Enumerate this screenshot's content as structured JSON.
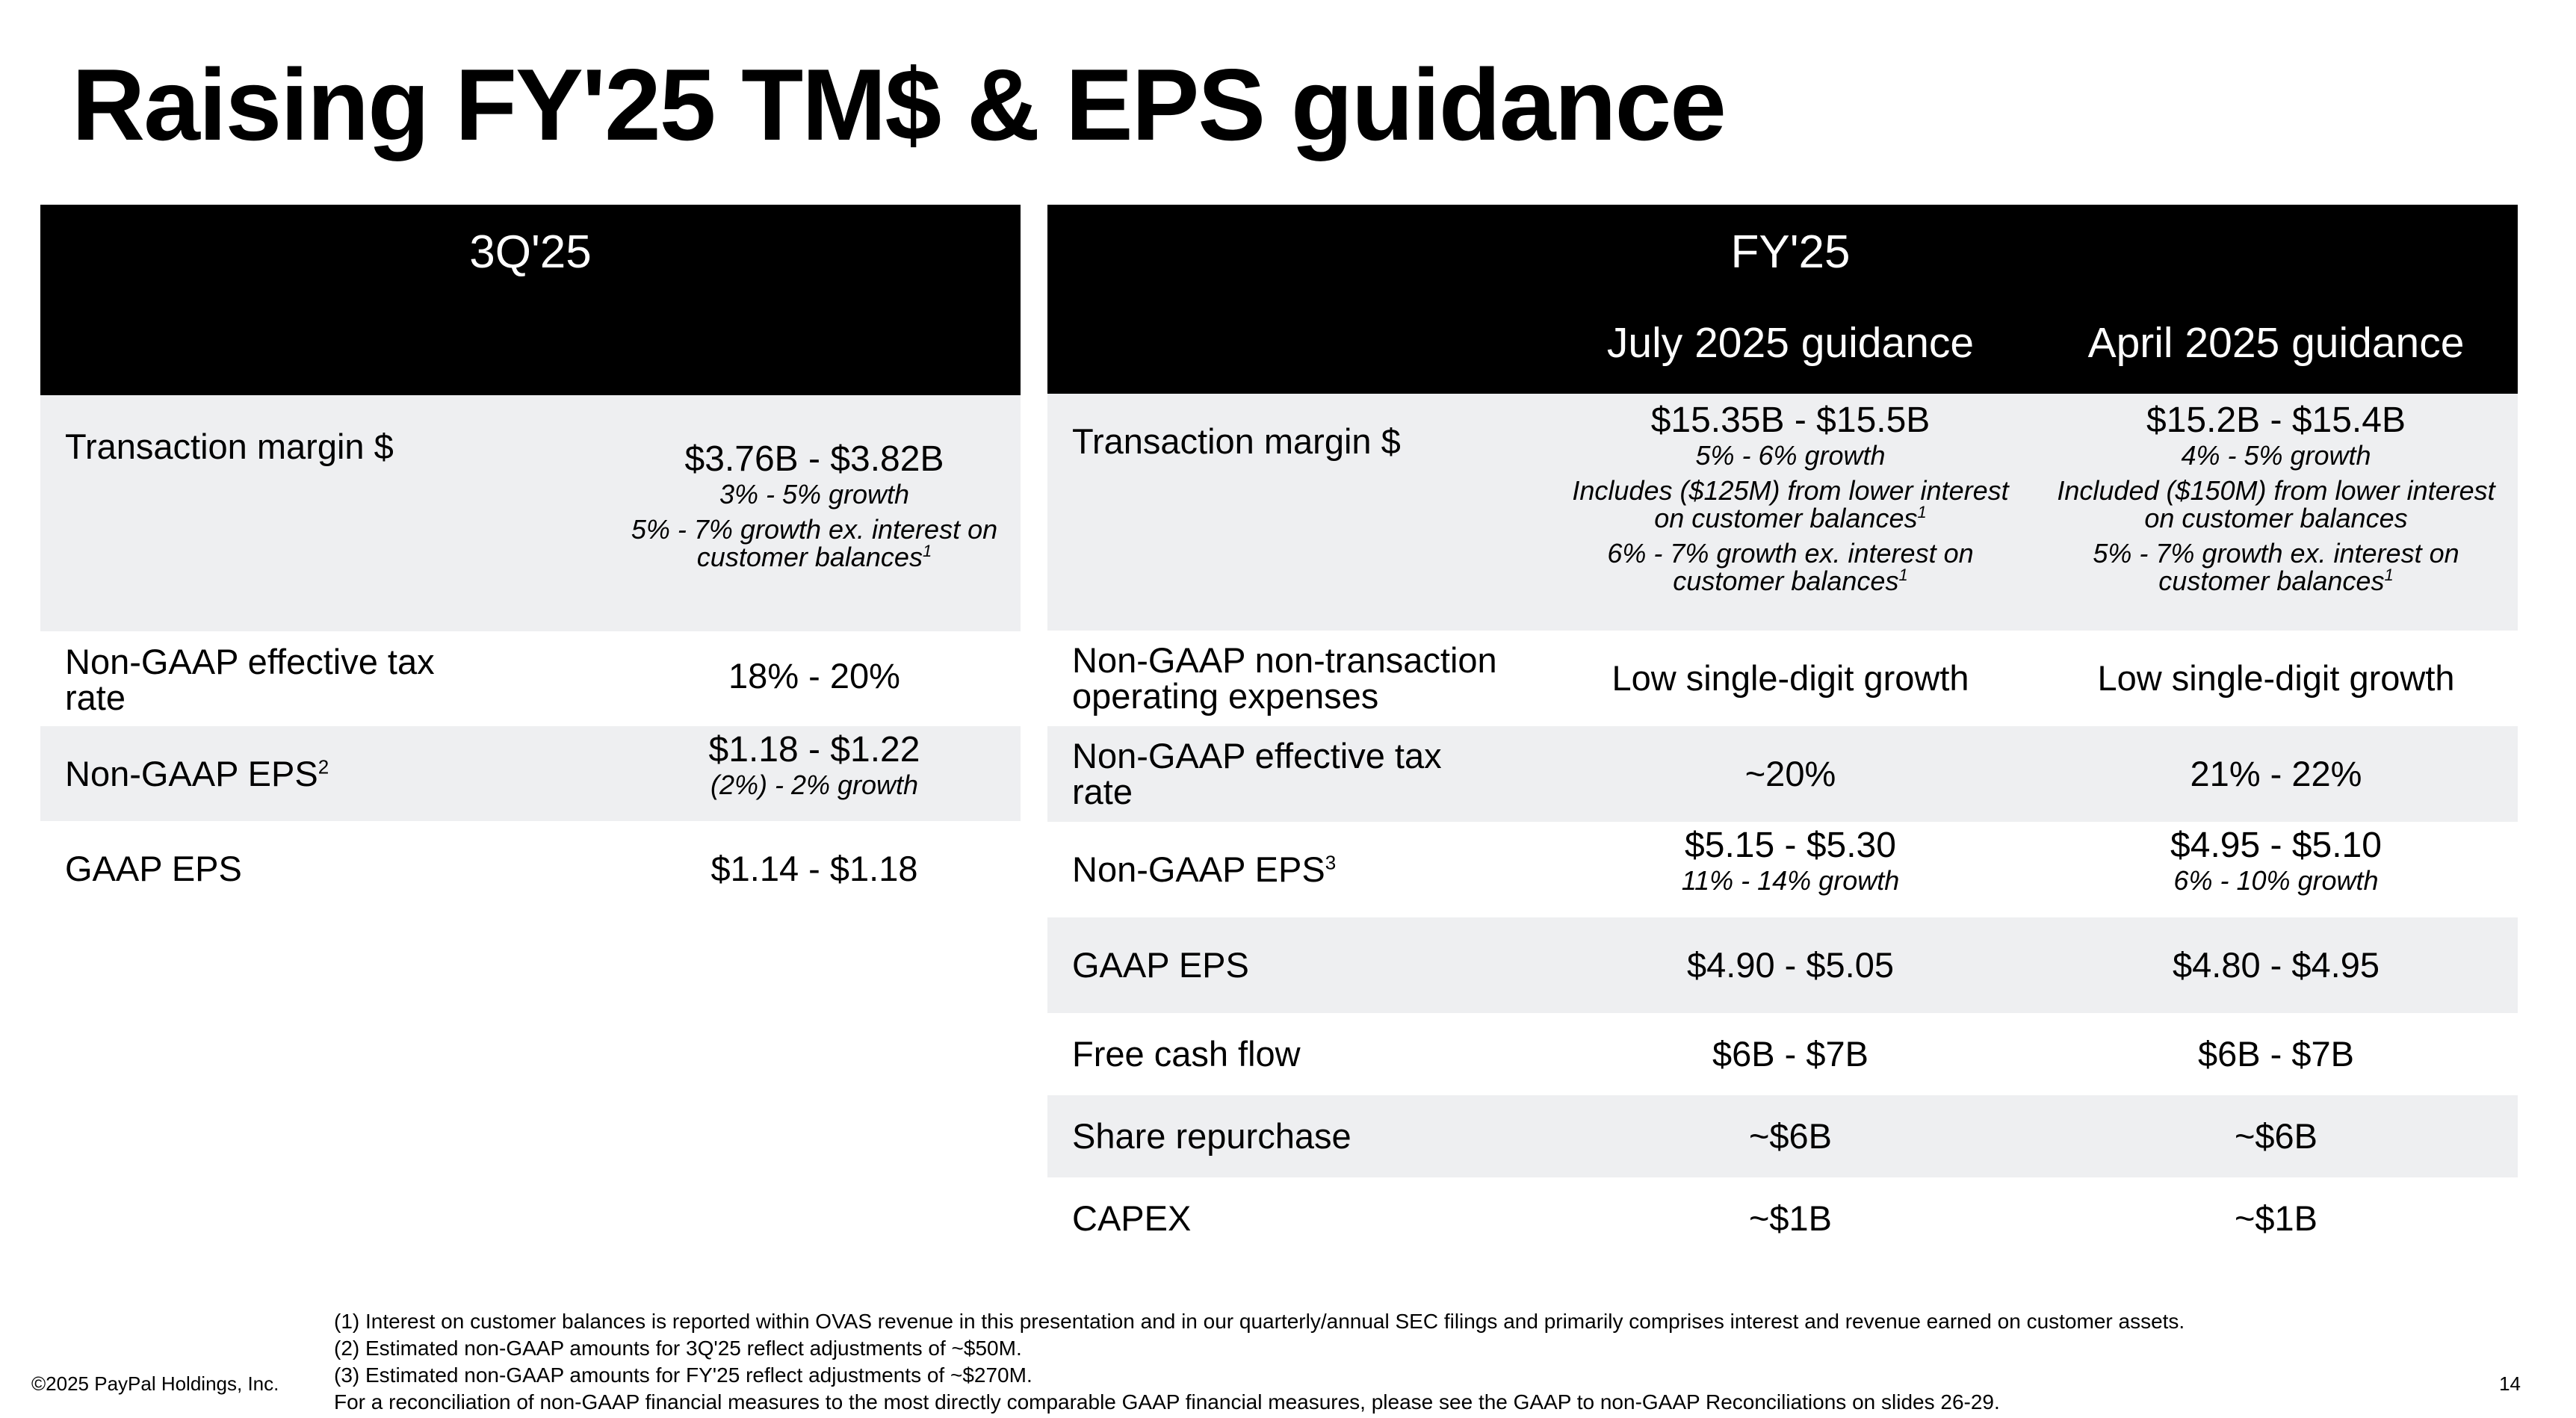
{
  "title": "Raising FY'25 TM$ & EPS guidance",
  "left": {
    "header": "3Q'25",
    "rows": [
      {
        "label": "Transaction margin $",
        "value": "$3.76B - $3.82B",
        "note1": "3% - 5% growth",
        "note2": "5% - 7% growth ex. interest on",
        "note3": "customer balances",
        "fn": "1"
      },
      {
        "label1": "Non-GAAP effective tax",
        "label2": "rate",
        "value": "18% - 20%"
      },
      {
        "label": "Non-GAAP EPS",
        "sup": "2",
        "value": "$1.18 - $1.22",
        "note1": "(2%) - 2% growth"
      },
      {
        "label": "GAAP EPS",
        "value": "$1.14 - $1.18"
      }
    ]
  },
  "right": {
    "header": "FY'25",
    "col1": "July 2025 guidance",
    "col2": "April 2025 guidance",
    "rows": {
      "tm": {
        "label": "Transaction margin $",
        "c1": {
          "value": "$15.35B - $15.5B",
          "n1": "5% - 6% growth",
          "n2a": "Includes ($125M) from lower interest",
          "n2b": "on customer balances",
          "n3a": "6% - 7% growth ex. interest on",
          "n3b": "customer balances",
          "fn": "1"
        },
        "c2": {
          "value": "$15.2B - $15.4B",
          "n1": "4% - 5% growth",
          "n2a": "Included ($150M) from lower interest",
          "n2b": "on customer balances",
          "n3a": "5% - 7% growth ex. interest on",
          "n3b": "customer balances",
          "fn": "1"
        }
      },
      "opex": {
        "label1": "Non-GAAP non-transaction",
        "label2": "operating expenses",
        "c1": "Low single-digit growth",
        "c2": "Low single-digit growth"
      },
      "tax": {
        "label1": "Non-GAAP effective tax",
        "label2": "rate",
        "c1": "~20%",
        "c2": "21% - 22%"
      },
      "eps": {
        "label": "Non-GAAP EPS",
        "sup": "3",
        "c1": {
          "value": "$5.15 - $5.30",
          "note": "11% - 14% growth"
        },
        "c2": {
          "value": "$4.95 - $5.10",
          "note": "6% - 10% growth"
        }
      },
      "gaap": {
        "label": "GAAP EPS",
        "c1": "$4.90 - $5.05",
        "c2": "$4.80 - $4.95"
      },
      "fcf": {
        "label": "Free cash flow",
        "c1": "$6B - $7B",
        "c2": "$6B - $7B"
      },
      "buyback": {
        "label": "Share repurchase",
        "c1": "~$6B",
        "c2": "~$6B"
      },
      "capex": {
        "label": "CAPEX",
        "c1": "~$1B",
        "c2": "~$1B"
      }
    }
  },
  "footnotes": [
    "(1) Interest on customer balances is reported within OVAS revenue in this presentation and in our quarterly/annual SEC filings and primarily comprises interest and revenue earned on customer assets.",
    "(2) Estimated non-GAAP amounts for 3Q'25 reflect adjustments of ~$50M.",
    "(3) Estimated non-GAAP amounts for FY'25 reflect adjustments of ~$270M.",
    "For a reconciliation of non-GAAP financial measures to the most directly comparable GAAP financial measures, please see the GAAP to non-GAAP Reconciliations on slides 26-29."
  ],
  "copyright": "©2025 PayPal Holdings, Inc.",
  "page_number": "14"
}
